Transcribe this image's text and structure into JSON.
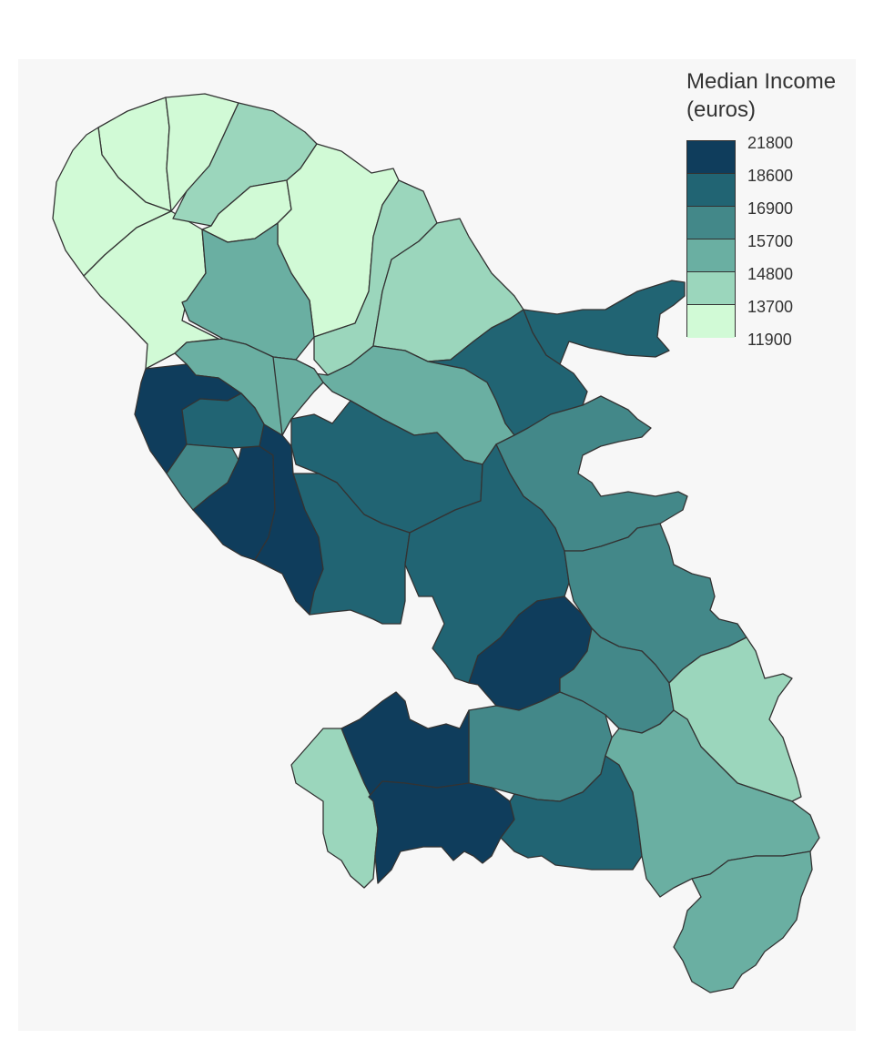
{
  "legend": {
    "title_line1": "Median Income",
    "title_line2": "(euros)",
    "breaks": [
      "21800",
      "18600",
      "16900",
      "15700",
      "14800",
      "13700",
      "11900"
    ]
  },
  "colors": {
    "class1": "#0f3d5c",
    "class2": "#216473",
    "class3": "#438889",
    "class4": "#6aafa2",
    "class5": "#9bd6bc",
    "class6": "#d1fad6",
    "border": "#333333",
    "panel_bg": "#f7f7f7"
  },
  "map_data": {
    "type": "choropleth",
    "variable": "Median Income (euros)",
    "classes": [
      {
        "from": 18600,
        "to": 21800,
        "color": "#0f3d5c"
      },
      {
        "from": 16900,
        "to": 18600,
        "color": "#216473"
      },
      {
        "from": 15700,
        "to": 16900,
        "color": "#438889"
      },
      {
        "from": 14800,
        "to": 15700,
        "color": "#6aafa2"
      },
      {
        "from": 13700,
        "to": 14800,
        "color": "#9bd6bc"
      },
      {
        "from": 11900,
        "to": 13700,
        "color": "#d1fad6"
      }
    ]
  }
}
